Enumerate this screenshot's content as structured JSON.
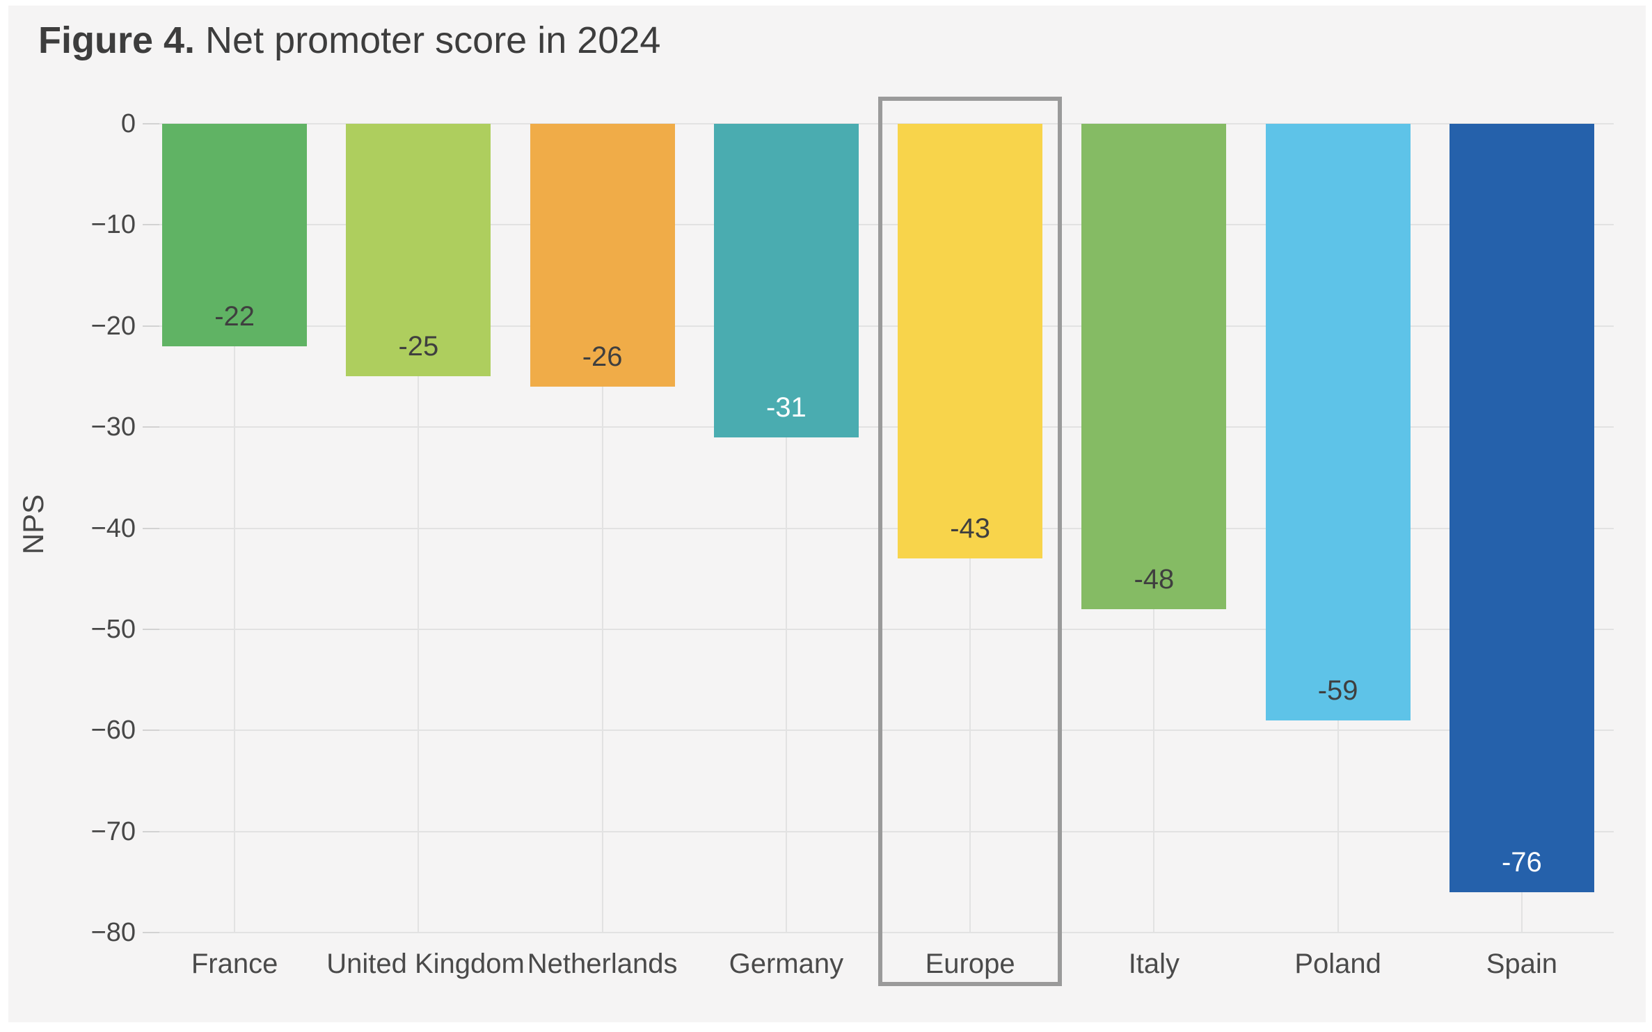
{
  "figure": {
    "title_prefix": "Figure 4.",
    "title_rest": " Net promoter score in 2024"
  },
  "chart_data": {
    "type": "bar",
    "categories": [
      "France",
      "United Kingdom",
      "Netherlands",
      "Germany",
      "Europe",
      "Italy",
      "Poland",
      "Spain"
    ],
    "values": [
      -22,
      -25,
      -26,
      -31,
      -43,
      -48,
      -59,
      -76
    ],
    "bar_colors": [
      "#60B364",
      "#AECE5E",
      "#F0AC48",
      "#4AACB0",
      "#F8D44B",
      "#85BB64",
      "#5EC3E8",
      "#2561AB"
    ],
    "value_labels": [
      "-22",
      "-25",
      "-26",
      "-31",
      "-43",
      "-48",
      "-59",
      "-76"
    ],
    "value_label_colors": [
      "#3f3f3f",
      "#3f3f3f",
      "#3f3f3f",
      "#ffffff",
      "#3f3f3f",
      "#3f3f3f",
      "#3f3f3f",
      "#ffffff"
    ],
    "title": "Figure 4. Net promoter score in 2024",
    "xlabel": "",
    "ylabel": "NPS",
    "ylim": [
      -80,
      0
    ],
    "yticks": [
      0,
      -10,
      -20,
      -30,
      -40,
      -50,
      -60,
      -70,
      -80
    ],
    "grid": true,
    "legend": "none",
    "highlight_category": "Europe",
    "colors": {
      "panel_bg": "#f5f4f4",
      "page_bg": "#ffffff",
      "grid": "#e2e2e2",
      "tick_mark": "#d2d2d2",
      "axis_text": "#474747",
      "title_text": "#3d3d3d",
      "highlight_box": "#9a9a9a"
    }
  }
}
